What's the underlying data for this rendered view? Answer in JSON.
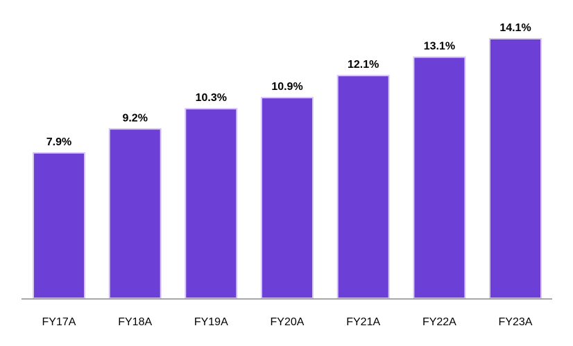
{
  "chart_data": {
    "type": "bar",
    "categories": [
      "FY17A",
      "FY18A",
      "FY19A",
      "FY20A",
      "FY21A",
      "FY22A",
      "FY23A"
    ],
    "values": [
      7.9,
      9.2,
      10.3,
      10.9,
      12.1,
      13.1,
      14.1
    ],
    "data_labels": [
      "7.9%",
      "9.2%",
      "10.3%",
      "10.9%",
      "12.1%",
      "13.1%",
      "14.1%"
    ],
    "title": "",
    "xlabel": "",
    "ylabel": "",
    "ylim": [
      0,
      14.1
    ],
    "grid": false,
    "legend": "none",
    "colors": {
      "bar_fill": "#6c40d6",
      "bar_edge": "#d8c8f4",
      "axis": "#8c8c8c"
    }
  }
}
